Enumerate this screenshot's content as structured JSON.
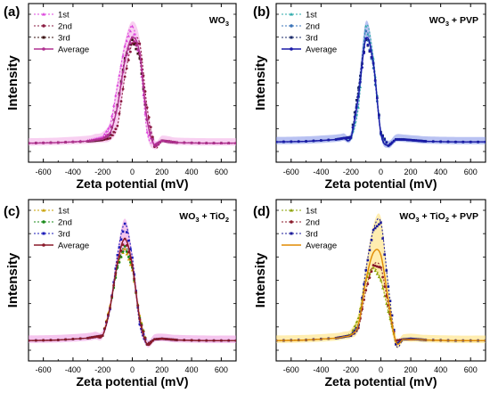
{
  "chart_data": [
    {
      "type": "line",
      "panel_label": "(a)",
      "title_parts": [
        "WO",
        "3",
        ""
      ],
      "xlabel": "Zeta potential (mV)",
      "ylabel": "Intensity",
      "xlim": [
        -700,
        700
      ],
      "xticks": [
        -600,
        -400,
        -200,
        0,
        200,
        400,
        600
      ],
      "xtick_labels": [
        "-600",
        "-400",
        "-200",
        "0",
        "200",
        "400",
        "600"
      ],
      "ylim": [
        0,
        1.0
      ],
      "legend": "top-left",
      "x": [
        -700,
        -500,
        -300,
        -250,
        -200,
        -150,
        -100,
        -50,
        0,
        50,
        100,
        150,
        200,
        250,
        300,
        500,
        700
      ],
      "series": [
        {
          "name": "1st",
          "color": "#dd44dd",
          "style": "dotted",
          "marker": "triangle",
          "values": [
            0.01,
            0.015,
            0.03,
            0.045,
            0.06,
            0.15,
            0.48,
            0.8,
            0.96,
            0.7,
            0.1,
            0.0,
            0.03,
            0.02,
            0.015,
            0.01,
            0.01
          ]
        },
        {
          "name": "2nd",
          "color": "#8a1a40",
          "style": "dotted",
          "marker": "circle",
          "values": [
            0.01,
            0.015,
            0.025,
            0.03,
            0.035,
            0.05,
            0.15,
            0.55,
            0.82,
            0.82,
            0.3,
            -0.02,
            0.03,
            0.025,
            0.015,
            0.01,
            0.01
          ]
        },
        {
          "name": "3rd",
          "color": "#3a1010",
          "style": "dotted",
          "marker": "square",
          "values": [
            0.01,
            0.015,
            0.025,
            0.03,
            0.04,
            0.08,
            0.32,
            0.7,
            0.85,
            0.7,
            0.2,
            -0.01,
            0.03,
            0.02,
            0.015,
            0.01,
            0.01
          ]
        },
        {
          "name": "Average",
          "color": "#b03090",
          "style": "solid",
          "marker": "circle",
          "band": "#f2a9e6",
          "values": [
            0.01,
            0.015,
            0.027,
            0.035,
            0.045,
            0.09,
            0.31,
            0.68,
            0.87,
            0.74,
            0.2,
            -0.01,
            0.03,
            0.022,
            0.015,
            0.01,
            0.01
          ]
        }
      ]
    },
    {
      "type": "line",
      "panel_label": "(b)",
      "title_parts": [
        "WO",
        "3",
        " + PVP"
      ],
      "xlabel": "Zeta potential (mV)",
      "ylabel": "Intensity",
      "xlim": [
        -700,
        700
      ],
      "xticks": [
        -600,
        -400,
        -200,
        0,
        200,
        400,
        600
      ],
      "xtick_labels": [
        "-600",
        "-400",
        "-200",
        "0",
        "200",
        "400",
        "600"
      ],
      "ylim": [
        0,
        1.0
      ],
      "legend": "top-left",
      "x": [
        -700,
        -500,
        -300,
        -250,
        -200,
        -150,
        -100,
        -50,
        0,
        50,
        100,
        150,
        200,
        250,
        300,
        500,
        700
      ],
      "series": [
        {
          "name": "1st",
          "color": "#2aa9a9",
          "style": "dotted",
          "marker": "triangle",
          "values": [
            0.02,
            0.025,
            0.04,
            0.05,
            0.05,
            0.3,
            0.96,
            0.7,
            0.1,
            -0.01,
            0.04,
            0.04,
            0.035,
            0.03,
            0.025,
            0.02,
            0.02
          ]
        },
        {
          "name": "2nd",
          "color": "#3a73b8",
          "style": "dotted",
          "marker": "circle",
          "values": [
            0.02,
            0.025,
            0.04,
            0.05,
            0.05,
            0.4,
            0.92,
            0.62,
            0.08,
            -0.01,
            0.04,
            0.04,
            0.035,
            0.03,
            0.025,
            0.02,
            0.02
          ]
        },
        {
          "name": "3rd",
          "color": "#1a2a6a",
          "style": "dotted",
          "marker": "square",
          "values": [
            0.02,
            0.025,
            0.04,
            0.05,
            0.06,
            0.46,
            0.85,
            0.66,
            0.1,
            -0.01,
            0.04,
            0.04,
            0.035,
            0.03,
            0.025,
            0.02,
            0.02
          ]
        },
        {
          "name": "Average",
          "color": "#1a1aa8",
          "style": "solid",
          "marker": "circle",
          "band": "#7f8fe8",
          "values": [
            0.02,
            0.025,
            0.04,
            0.05,
            0.055,
            0.39,
            0.86,
            0.66,
            0.09,
            -0.01,
            0.04,
            0.04,
            0.035,
            0.03,
            0.025,
            0.02,
            0.02
          ]
        }
      ]
    },
    {
      "type": "line",
      "panel_label": "(c)",
      "title_parts": [
        "WO",
        "3",
        " + TiO",
        "2",
        ""
      ],
      "xlabel": "Zeta potential (mV)",
      "ylabel": "Intensity",
      "xlim": [
        -700,
        700
      ],
      "xticks": [
        -600,
        -400,
        -200,
        0,
        200,
        400,
        600
      ],
      "xtick_labels": [
        "-600",
        "-400",
        "-200",
        "0",
        "200",
        "400",
        "600"
      ],
      "ylim": [
        0,
        1.0
      ],
      "legend": "top-left",
      "x": [
        -700,
        -500,
        -300,
        -250,
        -200,
        -150,
        -100,
        -50,
        0,
        50,
        100,
        150,
        200,
        250,
        300,
        500,
        700
      ],
      "series": [
        {
          "name": "1st",
          "color": "#c8a000",
          "style": "dotted",
          "marker": "triangle",
          "values": [
            0.02,
            0.025,
            0.04,
            0.05,
            0.06,
            0.3,
            0.62,
            0.75,
            0.58,
            0.22,
            -0.01,
            0.03,
            0.035,
            0.03,
            0.025,
            0.02,
            0.02
          ]
        },
        {
          "name": "2nd",
          "color": "#1a8a1a",
          "style": "dotted",
          "marker": "circle",
          "values": [
            0.02,
            0.025,
            0.04,
            0.05,
            0.06,
            0.28,
            0.6,
            0.77,
            0.6,
            0.2,
            -0.01,
            0.03,
            0.035,
            0.03,
            0.025,
            0.02,
            0.02
          ]
        },
        {
          "name": "3rd",
          "color": "#1a1ab8",
          "style": "dotted",
          "marker": "square",
          "values": [
            0.02,
            0.025,
            0.04,
            0.05,
            0.06,
            0.27,
            0.7,
            0.95,
            0.68,
            0.15,
            -0.01,
            0.03,
            0.035,
            0.03,
            0.025,
            0.02,
            0.02
          ]
        },
        {
          "name": "Average",
          "color": "#8a1a2a",
          "style": "solid",
          "marker": "circle",
          "band": "#ec96e0",
          "values": [
            0.02,
            0.025,
            0.04,
            0.05,
            0.06,
            0.28,
            0.64,
            0.83,
            0.62,
            0.19,
            -0.01,
            0.03,
            0.035,
            0.03,
            0.025,
            0.02,
            0.02
          ]
        }
      ]
    },
    {
      "type": "line",
      "panel_label": "(d)",
      "title_parts": [
        "WO",
        "3",
        " + TiO",
        "2",
        " + PVP"
      ],
      "xlabel": "Zeta potential (mV)",
      "ylabel": "Intensity",
      "xlim": [
        -700,
        700
      ],
      "xticks": [
        -600,
        -400,
        -200,
        0,
        200,
        400,
        600
      ],
      "xtick_labels": [
        "-600",
        "-400",
        "-200",
        "0",
        "200",
        "400",
        "600"
      ],
      "ylim": [
        0,
        1.0
      ],
      "legend": "top-left",
      "x": [
        -700,
        -500,
        -300,
        -250,
        -200,
        -150,
        -100,
        -50,
        0,
        50,
        100,
        150,
        200,
        250,
        300,
        500,
        700
      ],
      "series": [
        {
          "name": "1st",
          "color": "#8aa000",
          "style": "dotted",
          "marker": "triangle",
          "values": [
            0.02,
            0.025,
            0.04,
            0.05,
            0.07,
            0.2,
            0.5,
            0.6,
            0.5,
            0.25,
            0.02,
            0.03,
            0.03,
            0.03,
            0.025,
            0.02,
            0.02
          ]
        },
        {
          "name": "2nd",
          "color": "#8a1a2a",
          "style": "dotted",
          "marker": "circle",
          "values": [
            0.02,
            0.025,
            0.04,
            0.05,
            0.06,
            0.12,
            0.42,
            0.62,
            0.6,
            0.3,
            0.02,
            0.03,
            0.03,
            0.03,
            0.025,
            0.02,
            0.02
          ]
        },
        {
          "name": "3rd",
          "color": "#1a1a9a",
          "style": "dotted",
          "marker": "square",
          "values": [
            0.02,
            0.025,
            0.04,
            0.05,
            0.06,
            0.14,
            0.58,
            0.9,
            0.96,
            0.45,
            -0.01,
            0.03,
            0.035,
            0.03,
            0.025,
            0.02,
            0.02
          ]
        },
        {
          "name": "Average",
          "color": "#e08a00",
          "style": "solid",
          "marker": "none",
          "band": "#ffdf70",
          "values": [
            0.02,
            0.025,
            0.04,
            0.05,
            0.065,
            0.15,
            0.5,
            0.72,
            0.7,
            0.34,
            0.01,
            0.03,
            0.03,
            0.03,
            0.025,
            0.02,
            0.02
          ]
        }
      ]
    }
  ]
}
